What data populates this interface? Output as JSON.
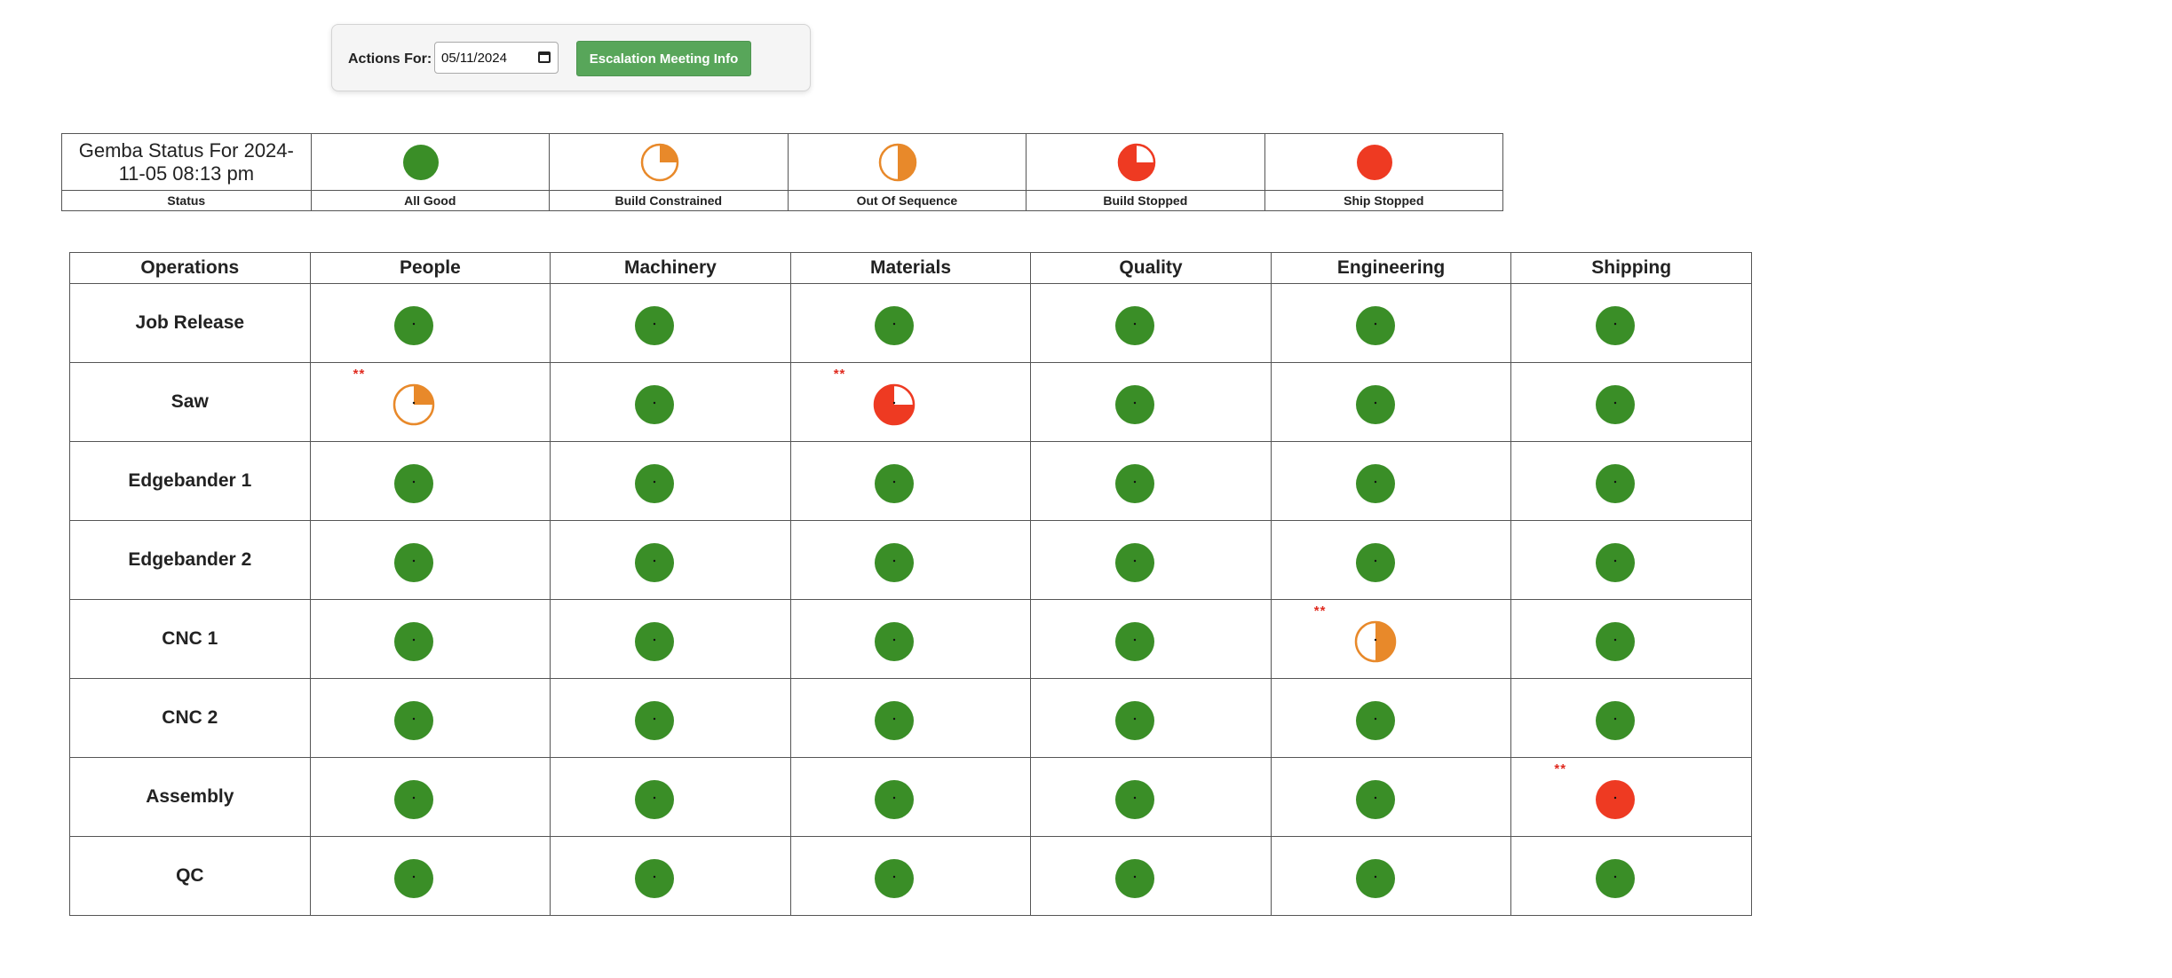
{
  "toolbar": {
    "label": "Actions For:",
    "date_value": "05/11/2024",
    "button_label": "Escalation Meeting Info"
  },
  "legend": {
    "title": "Gemba Status For 2024-11-05 08:13 pm",
    "status_label": "Status",
    "items": [
      {
        "label": "All Good",
        "status": "all-good"
      },
      {
        "label": "Build Constrained",
        "status": "build-constrained"
      },
      {
        "label": "Out Of Sequence",
        "status": "out-of-sequence"
      },
      {
        "label": "Build Stopped",
        "status": "build-stopped"
      },
      {
        "label": "Ship Stopped",
        "status": "ship-stopped"
      }
    ]
  },
  "colors": {
    "green": "#3a8e27",
    "orange": "#e8892a",
    "red": "#ee3a22",
    "button": "#58a65a",
    "flag": "#e02b20"
  },
  "grid": {
    "headers": [
      "Operations",
      "People",
      "Machinery",
      "Materials",
      "Quality",
      "Engineering",
      "Shipping"
    ],
    "flag_text": "**",
    "rows": [
      {
        "operation": "Job Release",
        "cells": [
          {
            "status": "all-good"
          },
          {
            "status": "all-good"
          },
          {
            "status": "all-good"
          },
          {
            "status": "all-good"
          },
          {
            "status": "all-good"
          },
          {
            "status": "all-good"
          }
        ]
      },
      {
        "operation": "Saw",
        "cells": [
          {
            "status": "build-constrained",
            "flag": true
          },
          {
            "status": "all-good"
          },
          {
            "status": "build-stopped",
            "flag": true
          },
          {
            "status": "all-good"
          },
          {
            "status": "all-good"
          },
          {
            "status": "all-good"
          }
        ]
      },
      {
        "operation": "Edgebander 1",
        "cells": [
          {
            "status": "all-good"
          },
          {
            "status": "all-good"
          },
          {
            "status": "all-good"
          },
          {
            "status": "all-good"
          },
          {
            "status": "all-good"
          },
          {
            "status": "all-good"
          }
        ]
      },
      {
        "operation": "Edgebander 2",
        "cells": [
          {
            "status": "all-good"
          },
          {
            "status": "all-good"
          },
          {
            "status": "all-good"
          },
          {
            "status": "all-good"
          },
          {
            "status": "all-good"
          },
          {
            "status": "all-good"
          }
        ]
      },
      {
        "operation": "CNC 1",
        "cells": [
          {
            "status": "all-good"
          },
          {
            "status": "all-good"
          },
          {
            "status": "all-good"
          },
          {
            "status": "all-good"
          },
          {
            "status": "out-of-sequence",
            "flag": true
          },
          {
            "status": "all-good"
          }
        ]
      },
      {
        "operation": "CNC 2",
        "cells": [
          {
            "status": "all-good"
          },
          {
            "status": "all-good"
          },
          {
            "status": "all-good"
          },
          {
            "status": "all-good"
          },
          {
            "status": "all-good"
          },
          {
            "status": "all-good"
          }
        ]
      },
      {
        "operation": "Assembly",
        "cells": [
          {
            "status": "all-good"
          },
          {
            "status": "all-good"
          },
          {
            "status": "all-good"
          },
          {
            "status": "all-good"
          },
          {
            "status": "all-good"
          },
          {
            "status": "ship-stopped",
            "flag": true
          }
        ]
      },
      {
        "operation": "QC",
        "cells": [
          {
            "status": "all-good"
          },
          {
            "status": "all-good"
          },
          {
            "status": "all-good"
          },
          {
            "status": "all-good"
          },
          {
            "status": "all-good"
          },
          {
            "status": "all-good"
          }
        ]
      }
    ]
  }
}
